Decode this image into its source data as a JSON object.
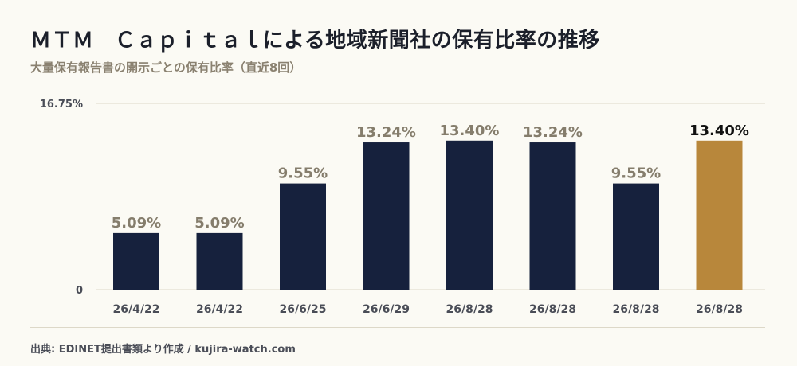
{
  "header": {
    "title": "ＭＴＭ　Ｃａｐｉｔａｌによる地域新聞社の保有比率の推移",
    "subtitle": "大量保有報告書の開示ごとの保有比率（直近8回）"
  },
  "footer": {
    "source": "出典: EDINET提出書類より作成 / kujira-watch.com"
  },
  "colors": {
    "bar": "#16213d",
    "highlight": "#b8873b",
    "label": "#857d6c",
    "highlight_label": "#111111"
  },
  "chart_data": {
    "type": "bar",
    "categories": [
      "26/4/22",
      "26/4/22",
      "26/6/25",
      "26/6/29",
      "26/8/28",
      "26/8/28",
      "26/8/28",
      "26/8/28"
    ],
    "values": [
      5.09,
      5.09,
      9.55,
      13.24,
      13.4,
      13.24,
      9.55,
      13.4
    ],
    "data_labels": [
      "5.09%",
      "5.09%",
      "9.55%",
      "13.24%",
      "13.40%",
      "13.24%",
      "9.55%",
      "13.40%"
    ],
    "highlight_index": 7,
    "ylim": [
      0,
      16.75
    ],
    "y_ticks": [
      {
        "value": 0,
        "label": "0"
      },
      {
        "value": 16.75,
        "label": "16.75%"
      }
    ],
    "grid": true,
    "title": "",
    "xlabel": "",
    "ylabel": ""
  }
}
